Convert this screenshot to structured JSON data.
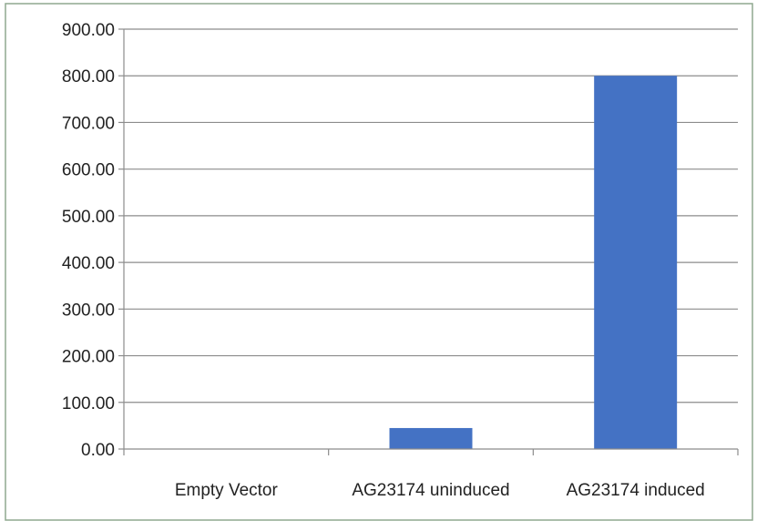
{
  "chart_data": {
    "type": "bar",
    "title": "",
    "xlabel": "",
    "ylabel": "",
    "categories": [
      "Empty Vector",
      "AG23174 uninduced",
      "AG23174 induced"
    ],
    "values": [
      0,
      45,
      800
    ],
    "ylim": [
      0,
      900
    ],
    "yticks": [
      "0.00",
      "100.00",
      "200.00",
      "300.00",
      "400.00",
      "500.00",
      "600.00",
      "700.00",
      "800.00",
      "900.00"
    ],
    "grid": true,
    "legend": "none",
    "bar_color": "#4472c4",
    "grid_color": "#8c8c8c",
    "frame_color": "#8fa88f"
  }
}
